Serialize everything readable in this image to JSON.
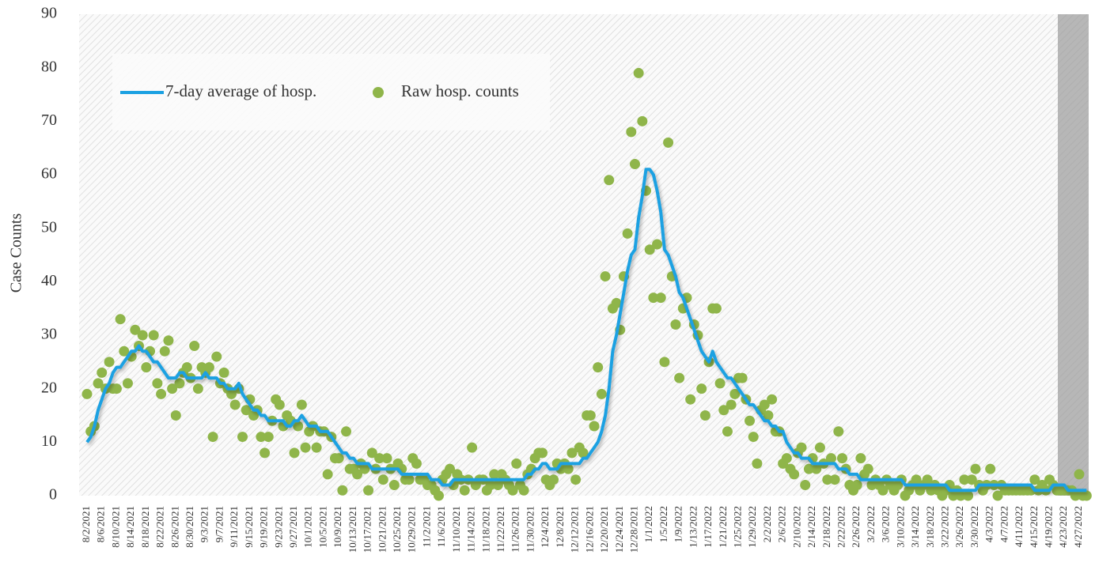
{
  "chart_data": {
    "type": "line",
    "y_label": "Case Counts",
    "categories": [
      "8/2/2021",
      null,
      null,
      null,
      "8/6/2021",
      null,
      null,
      null,
      "8/10/2021",
      null,
      null,
      null,
      "8/14/2021",
      null,
      null,
      null,
      "8/18/2021",
      null,
      null,
      null,
      "8/22/2021",
      null,
      null,
      null,
      "8/26/2021",
      null,
      null,
      null,
      "8/30/2021",
      null,
      null,
      null,
      "9/3/2021",
      null,
      null,
      null,
      "9/7/2021",
      null,
      null,
      null,
      "9/11/2021",
      null,
      null,
      null,
      "9/15/2021",
      null,
      null,
      null,
      "9/19/2021",
      null,
      null,
      null,
      "9/23/2021",
      null,
      null,
      null,
      "9/27/2021",
      null,
      null,
      null,
      "10/1/2021",
      null,
      null,
      null,
      "10/5/2021",
      null,
      null,
      null,
      "10/9/2021",
      null,
      null,
      null,
      "10/13/2021",
      null,
      null,
      null,
      "10/17/2021",
      null,
      null,
      null,
      "10/21/2021",
      null,
      null,
      null,
      "10/25/2021",
      null,
      null,
      null,
      "10/29/2021",
      null,
      null,
      null,
      "11/2/2021",
      null,
      null,
      null,
      "11/6/2021",
      null,
      null,
      null,
      "11/10/2021",
      null,
      null,
      null,
      "11/14/2021",
      null,
      null,
      null,
      "11/18/2021",
      null,
      null,
      null,
      "11/22/2021",
      null,
      null,
      null,
      "11/26/2021",
      null,
      null,
      null,
      "11/30/2021",
      null,
      null,
      null,
      "12/4/2021",
      null,
      null,
      null,
      "12/8/2021",
      null,
      null,
      null,
      "12/12/2021",
      null,
      null,
      null,
      "12/16/2021",
      null,
      null,
      null,
      "12/20/2021",
      null,
      null,
      null,
      "12/24/2021",
      null,
      null,
      null,
      "12/28/2021",
      null,
      null,
      null,
      "1/1/2022",
      null,
      null,
      null,
      "1/5/2022",
      null,
      null,
      null,
      "1/9/2022",
      null,
      null,
      null,
      "1/13/2022",
      null,
      null,
      null,
      "1/17/2022",
      null,
      null,
      null,
      "1/21/2022",
      null,
      null,
      null,
      "1/25/2022",
      null,
      null,
      null,
      "1/29/2022",
      null,
      null,
      null,
      "2/2/2022",
      null,
      null,
      null,
      "2/6/2022",
      null,
      null,
      null,
      "2/10/2022",
      null,
      null,
      null,
      "2/14/2022",
      null,
      null,
      null,
      "2/18/2022",
      null,
      null,
      null,
      "2/22/2022",
      null,
      null,
      null,
      "2/26/2022",
      null,
      null,
      null,
      "3/2/2022",
      null,
      null,
      null,
      "3/6/2022",
      null,
      null,
      null,
      "3/10/2022",
      null,
      null,
      null,
      "3/14/2022",
      null,
      null,
      null,
      "3/18/2022",
      null,
      null,
      null,
      "3/22/2022",
      null,
      null,
      null,
      "3/26/2022",
      null,
      null,
      null,
      "3/30/2022",
      null,
      null,
      null,
      "4/3/2022",
      null,
      null,
      null,
      "4/7/2022",
      null,
      null,
      null,
      "4/11/2022",
      null,
      null,
      null,
      "4/15/2022",
      null,
      null,
      null,
      "4/19/2022",
      null,
      null,
      null,
      "4/23/2022",
      null,
      null,
      null,
      "4/27/2022",
      null,
      null
    ],
    "series": [
      {
        "name": "7-day average of hosp.",
        "type": "line",
        "color": "#1ba1e2",
        "values": [
          10,
          11,
          13,
          16,
          18,
          20,
          21,
          23,
          24,
          24,
          25,
          26,
          27,
          27,
          28,
          27,
          27,
          26,
          25,
          25,
          24,
          23,
          22,
          22,
          22,
          23,
          23,
          22,
          22,
          22,
          22,
          22,
          23,
          22,
          22,
          22,
          21,
          21,
          20,
          20,
          20,
          21,
          19,
          18,
          17,
          16,
          16,
          15,
          15,
          14,
          14,
          14,
          14,
          14,
          13,
          13,
          14,
          14,
          15,
          14,
          13,
          13,
          13,
          12,
          12,
          12,
          11,
          10,
          9,
          8,
          8,
          7,
          7,
          6,
          6,
          6,
          6,
          5,
          5,
          5,
          5,
          5,
          5,
          5,
          5,
          4,
          4,
          4,
          4,
          4,
          4,
          4,
          4,
          3,
          3,
          3,
          2,
          2,
          2,
          3,
          3,
          3,
          3,
          3,
          3,
          3,
          3,
          3,
          3,
          3,
          3,
          3,
          3,
          3,
          3,
          3,
          3,
          3,
          3,
          4,
          4,
          5,
          5,
          6,
          6,
          5,
          5,
          5,
          6,
          6,
          6,
          6,
          6,
          6,
          7,
          7,
          8,
          9,
          10,
          12,
          15,
          20,
          27,
          30,
          34,
          38,
          42,
          45,
          46,
          52,
          56,
          61,
          61,
          60,
          57,
          53,
          46,
          45,
          43,
          41,
          38,
          37,
          35,
          33,
          31,
          29,
          27,
          26,
          25,
          27,
          25,
          24,
          23,
          22,
          22,
          21,
          20,
          19,
          18,
          17,
          17,
          16,
          15,
          14,
          14,
          13,
          13,
          12,
          12,
          10,
          9,
          8,
          8,
          7,
          7,
          7,
          6,
          6,
          6,
          6,
          6,
          6,
          6,
          5,
          5,
          5,
          4,
          4,
          4,
          3,
          3,
          3,
          3,
          3,
          3,
          3,
          3,
          3,
          3,
          3,
          3,
          2,
          2,
          2,
          2,
          2,
          2,
          2,
          2,
          2,
          2,
          2,
          2,
          1,
          1,
          1,
          1,
          1,
          1,
          1,
          1,
          2,
          2,
          2,
          2,
          2,
          2,
          2,
          2,
          2,
          2,
          2,
          2,
          2,
          2,
          2,
          1,
          1,
          1,
          1,
          1,
          2,
          2,
          2,
          2,
          1,
          1,
          1,
          1,
          1,
          1
        ]
      },
      {
        "name": "Raw hosp. counts",
        "type": "scatter",
        "color": "#8fb54a",
        "values": [
          19,
          12,
          13,
          21,
          23,
          20,
          25,
          20,
          20,
          33,
          27,
          21,
          26,
          31,
          28,
          30,
          24,
          27,
          30,
          21,
          19,
          27,
          29,
          20,
          15,
          21,
          23,
          24,
          22,
          28,
          20,
          24,
          23,
          24,
          11,
          26,
          21,
          23,
          20,
          19,
          17,
          20,
          11,
          16,
          18,
          15,
          16,
          11,
          8,
          11,
          14,
          18,
          17,
          13,
          15,
          14,
          8,
          13,
          17,
          9,
          12,
          13,
          9,
          12,
          12,
          4,
          11,
          7,
          7,
          1,
          12,
          5,
          5,
          4,
          6,
          5,
          1,
          8,
          5,
          7,
          3,
          7,
          5,
          2,
          6,
          5,
          3,
          3,
          7,
          6,
          3,
          3,
          2,
          2,
          1,
          0,
          3,
          4,
          5,
          2,
          4,
          3,
          1,
          3,
          9,
          2,
          3,
          3,
          1,
          2,
          4,
          2,
          4,
          3,
          2,
          1,
          6,
          2,
          1,
          4,
          5,
          7,
          8,
          8,
          3,
          2,
          3,
          6,
          5,
          6,
          5,
          8,
          3,
          9,
          8,
          15,
          15,
          13,
          24,
          19,
          41,
          59,
          35,
          36,
          31,
          41,
          49,
          68,
          62,
          79,
          70,
          57,
          46,
          37,
          47,
          37,
          25,
          66,
          41,
          32,
          22,
          35,
          37,
          18,
          32,
          30,
          20,
          15,
          25,
          35,
          35,
          21,
          16,
          12,
          17,
          19,
          22,
          22,
          18,
          14,
          11,
          6,
          16,
          17,
          15,
          18,
          12,
          12,
          6,
          7,
          5,
          4,
          8,
          9,
          2,
          5,
          7,
          5,
          9,
          6,
          3,
          7,
          3,
          12,
          7,
          5,
          2,
          1,
          2,
          7,
          4,
          5,
          2,
          3,
          2,
          1,
          3,
          2,
          1,
          2,
          3,
          0,
          1,
          2,
          3,
          1,
          2,
          3,
          1,
          2,
          1,
          0,
          1,
          2,
          0,
          1,
          0,
          3,
          0,
          3,
          5,
          2,
          1,
          2,
          5,
          2,
          0,
          2,
          1,
          1,
          1,
          1,
          1,
          1,
          1,
          1,
          3,
          1,
          2,
          1,
          3,
          2,
          1,
          1,
          1,
          1,
          1,
          0,
          4,
          0,
          0
        ]
      }
    ],
    "ylim": [
      0,
      90
    ],
    "yticks": [
      0,
      10,
      20,
      30,
      40,
      50,
      60,
      70,
      80,
      90
    ]
  }
}
